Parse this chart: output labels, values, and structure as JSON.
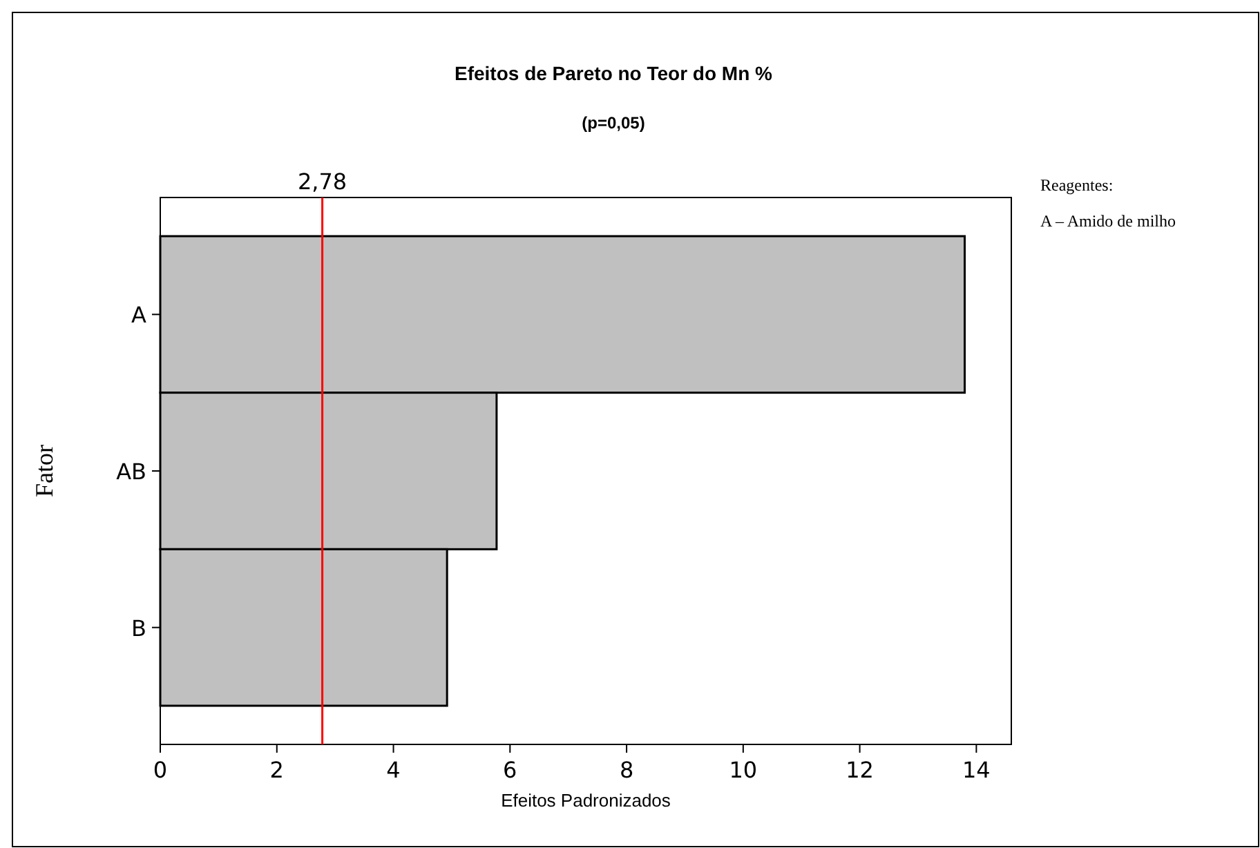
{
  "chart_data": {
    "type": "bar",
    "orientation": "horizontal",
    "title": "Efeitos de Pareto no Teor do Mn %",
    "subtitle": "(p=0,05)",
    "xlabel": "Efeitos Padronizados",
    "ylabel": "Fator",
    "categories": [
      "A",
      "AB",
      "B"
    ],
    "values": [
      13.8,
      5.77,
      4.92
    ],
    "color": "#c0c0c0",
    "xlim": [
      0,
      14.6
    ],
    "xticks": [
      0,
      2,
      4,
      6,
      8,
      10,
      12,
      14
    ],
    "ref_lines": [
      {
        "axis": "x",
        "value": 2.78,
        "label": "2,78",
        "color": "#ff0000"
      }
    ],
    "annotations": [
      "Reagentes:",
      "A – Amido de milho"
    ]
  }
}
